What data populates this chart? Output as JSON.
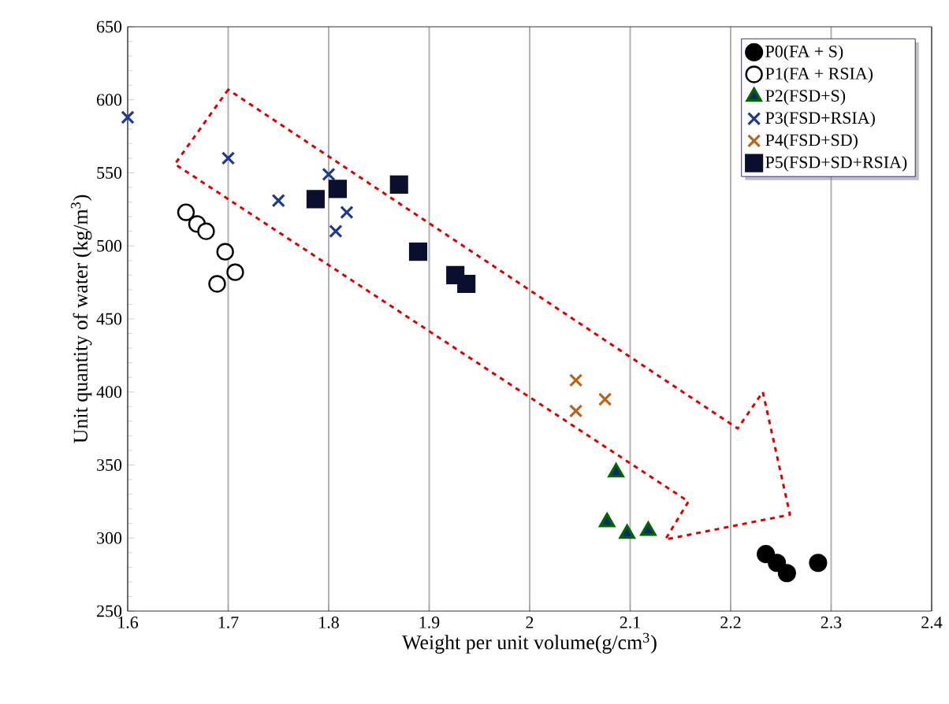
{
  "chart_data": {
    "type": "scatter",
    "xlabel": "Weight per unit volume(g/cm$^{3}$)",
    "ylabel": "Unit quantity of water (kg/m$^{3}$)",
    "xlim": [
      1.6,
      2.4
    ],
    "ylim": [
      250,
      650
    ],
    "xticks": [
      1.6,
      1.7,
      1.8,
      1.9,
      2,
      2.1,
      2.2,
      2.3,
      2.4
    ],
    "yticks": [
      250,
      300,
      350,
      400,
      450,
      500,
      550,
      600,
      650
    ],
    "grid": "x",
    "legend": "top right",
    "series": [
      {
        "name": "P0(FA + S)",
        "color": "#000000",
        "marker": "circle",
        "x": [
          2.235,
          2.246,
          2.256,
          2.287
        ],
        "values": [
          289,
          283,
          276,
          283
        ]
      },
      {
        "name": "P1(FA + RSIA)",
        "color": "#ffffff",
        "marker": "circle",
        "x": [
          1.658,
          1.669,
          1.678,
          1.697,
          1.707,
          1.689
        ],
        "values": [
          523,
          515,
          510,
          496,
          482,
          474
        ]
      },
      {
        "name": "P2(FSD+S)",
        "color": "#0d2a6e",
        "marker": "triangle",
        "x": [
          2.086,
          2.077,
          2.097,
          2.118
        ],
        "values": [
          345,
          311,
          303,
          305
        ]
      },
      {
        "name": "P3(FSD+RSIA)",
        "color": "#1f3a8a",
        "marker": "cross",
        "x": [
          1.6,
          1.7,
          1.75,
          1.8,
          1.807,
          1.818
        ],
        "values": [
          588,
          560,
          531,
          549,
          510,
          523
        ]
      },
      {
        "name": "P4(FSD+SD)",
        "color": "#b5651d",
        "marker": "cross",
        "x": [
          2.046,
          2.046,
          2.075
        ],
        "values": [
          408,
          387,
          395
        ]
      },
      {
        "name": "P5(FSD+SD+RSIA)",
        "color": "#0a0f2e",
        "marker": "square",
        "x": [
          1.787,
          1.809,
          1.87,
          1.889,
          1.926,
          1.937
        ],
        "values": [
          532,
          539,
          542,
          496,
          480,
          474
        ]
      }
    ]
  }
}
